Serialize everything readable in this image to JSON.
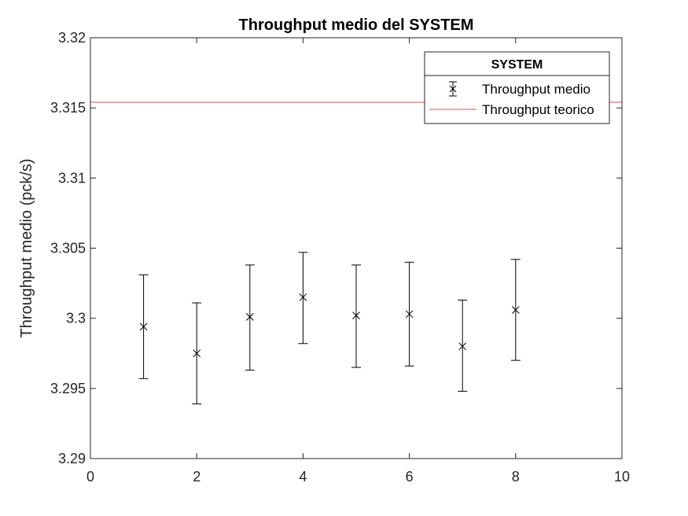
{
  "chart_data": {
    "type": "scatter",
    "title": "Throughput medio del SYSTEM",
    "xlabel": "",
    "ylabel": "Throughput medio (pck/s)",
    "xlim": [
      0,
      10
    ],
    "ylim": [
      3.29,
      3.32
    ],
    "x_ticks": [
      0,
      2,
      4,
      6,
      8,
      10
    ],
    "x_tick_labels": [
      "0",
      "2",
      "4",
      "6",
      "8",
      "10"
    ],
    "y_ticks": [
      3.29,
      3.295,
      3.3,
      3.305,
      3.31,
      3.315,
      3.32
    ],
    "y_tick_labels": [
      "3.29",
      "3.295",
      "3.3",
      "3.305",
      "3.31",
      "3.315",
      "3.32"
    ],
    "grid": false,
    "legend": {
      "title": "SYSTEM",
      "placement": "top-right",
      "entries": [
        "Throughput medio",
        "Throughput teorico"
      ]
    },
    "series": [
      {
        "name": "Throughput medio",
        "kind": "errorbar",
        "marker": "x",
        "color": "#000000",
        "x": [
          1,
          2,
          3,
          4,
          5,
          6,
          7,
          8
        ],
        "y": [
          3.2994,
          3.2975,
          3.3001,
          3.3015,
          3.3002,
          3.3003,
          3.298,
          3.3006
        ],
        "lower": [
          3.2957,
          3.2939,
          3.2963,
          3.2982,
          3.2965,
          3.2966,
          3.2948,
          3.297
        ],
        "upper": [
          3.3031,
          3.3011,
          3.3038,
          3.3047,
          3.3038,
          3.304,
          3.3013,
          3.3042
        ]
      },
      {
        "name": "Throughput teorico",
        "kind": "hline",
        "color": "#d9534f",
        "y": 3.3154
      }
    ]
  }
}
